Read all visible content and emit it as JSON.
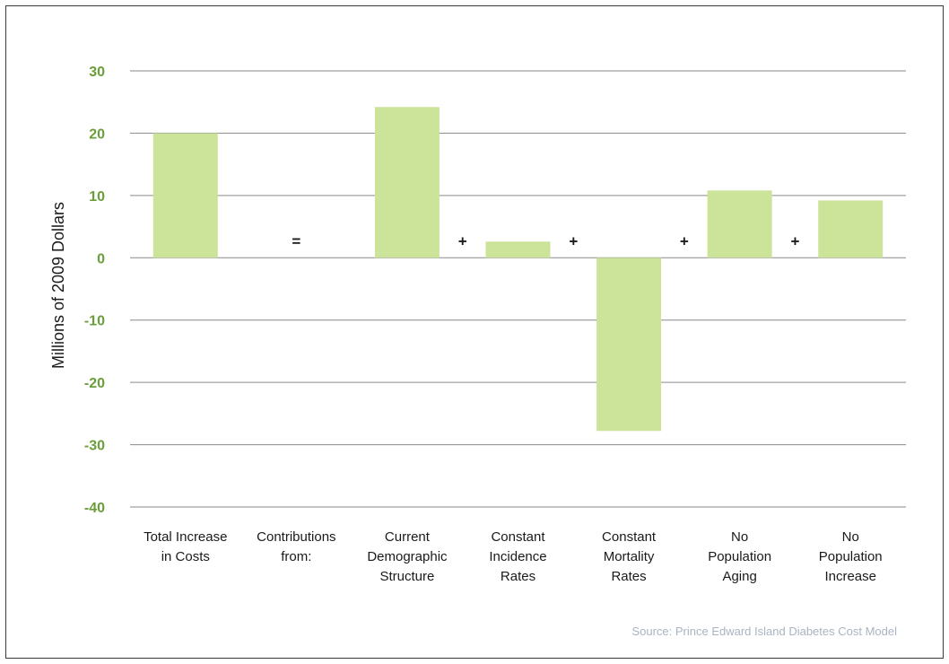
{
  "chart_data": {
    "type": "bar",
    "categories": [
      [
        "Total Increase",
        "in Costs"
      ],
      [
        "Contributions",
        "from:"
      ],
      [
        "Current",
        "Demographic",
        "Structure"
      ],
      [
        "Constant",
        "Incidence",
        "Rates"
      ],
      [
        "Constant",
        "Mortality",
        "Rates"
      ],
      [
        "No",
        "Population",
        "Aging"
      ],
      [
        "No",
        "Population",
        "Increase"
      ]
    ],
    "values": [
      20,
      null,
      24.2,
      2.6,
      -27.8,
      10.8,
      9.2
    ],
    "operators": [
      "=",
      "+",
      "+",
      "+",
      "+"
    ],
    "ylabel": "Millions of 2009 Dollars",
    "ylim": [
      -40,
      30
    ],
    "yticks": [
      "30",
      "20",
      "10",
      "0",
      "-10",
      "-20",
      "-30",
      "-40"
    ],
    "grid": true,
    "bar_color": "#cce39a",
    "tick_color": "#6a9e3a",
    "source": "Source: Prince Edward Island Diabetes Cost Model"
  }
}
